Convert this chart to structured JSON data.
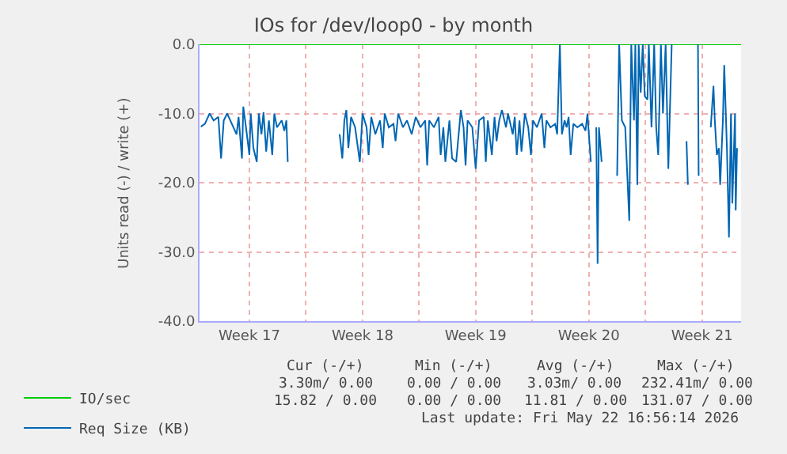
{
  "chart_data": {
    "type": "line",
    "title": "IOs for /dev/loop0 - by month",
    "ylabel": "Units read (-) / write (+)",
    "xlim": [
      "2026-04-20T10:00",
      "2026-05-23T22:00"
    ],
    "xticks": [
      {
        "value": "2026-04-23T12:00",
        "label": "Week 17"
      },
      {
        "value": "2026-04-27",
        "label": null
      },
      {
        "value": "2026-04-30T12:00",
        "label": "Week 18"
      },
      {
        "value": "2026-05-04",
        "label": null
      },
      {
        "value": "2026-05-07T12:00",
        "label": "Week 19"
      },
      {
        "value": "2026-05-11",
        "label": null
      },
      {
        "value": "2026-05-14T12:00",
        "label": "Week 20"
      },
      {
        "value": "2026-05-18",
        "label": null
      },
      {
        "value": "2026-05-21T12:00",
        "label": "Week 21"
      }
    ],
    "ylim": [
      -40,
      0
    ],
    "yticks": [
      {
        "value": 0,
        "label": "0.0"
      },
      {
        "value": -10,
        "label": "-10.0"
      },
      {
        "value": -20,
        "label": "-20.0"
      },
      {
        "value": -30,
        "label": "-30.0"
      },
      {
        "value": -40,
        "label": "-40.0"
      }
    ],
    "grid": true,
    "legend": "bottom left",
    "series": [
      {
        "name": "IO/sec",
        "color": "#00cc00",
        "x": [
          "2026-04-20T10:00",
          "2026-05-23T22:00"
        ],
        "values": [
          0,
          0
        ]
      },
      {
        "name": "Req Size (KB)",
        "color": "#0066b3",
        "x": [
          "2026-04-20T12:00",
          "2026-04-20T18:00",
          "2026-04-21T01:00",
          "2026-04-21T07:00",
          "2026-04-21T14:00",
          "2026-04-21T18:00",
          "2026-04-21T22:00",
          "2026-04-22T03:00",
          "2026-04-22T10:00",
          "2026-04-22T17:00",
          "2026-04-22T20:00",
          "2026-04-23T01:00",
          "2026-04-23T03:00",
          "2026-04-23T07:00",
          "2026-04-23T12:00",
          "2026-04-23T14:00",
          "2026-04-23T18:00",
          "2026-04-23T23:00",
          "2026-04-24T02:00",
          "2026-04-24T06:00",
          "2026-04-24T09:00",
          "2026-04-24T13:00",
          "2026-04-24T17:00",
          "2026-04-24T22:00",
          "2026-04-25T01:00",
          "2026-04-25T05:00",
          "2026-04-25T12:00",
          "2026-04-25T16:00",
          "2026-04-25T19:00",
          "2026-04-25T21:00",
          "2026-04-27T10:00",
          "2026-04-29T02:00",
          "2026-04-29T06:00",
          "2026-04-29T09:00",
          "2026-04-29T12:00",
          "2026-04-29T15:00",
          "2026-04-29T19:00",
          "2026-04-30T01:00",
          "2026-04-30T08:00",
          "2026-04-30T12:00",
          "2026-04-30T18:00",
          "2026-04-30T21:00",
          "2026-05-01T01:00",
          "2026-05-01T07:00",
          "2026-05-01T14:00",
          "2026-05-01T18:00",
          "2026-05-01T21:00",
          "2026-05-02T03:00",
          "2026-05-02T10:00",
          "2026-05-02T13:00",
          "2026-05-02T17:00",
          "2026-05-03T00:00",
          "2026-05-03T06:00",
          "2026-05-03T13:00",
          "2026-05-03T19:00",
          "2026-05-04T02:00",
          "2026-05-04T09:00",
          "2026-05-04T12:00",
          "2026-05-04T15:00",
          "2026-05-04T22:00",
          "2026-05-05T05:00",
          "2026-05-05T08:00",
          "2026-05-05T12:00",
          "2026-05-05T15:00",
          "2026-05-05T21:00",
          "2026-05-06T01:00",
          "2026-05-06T07:00",
          "2026-05-06T14:00",
          "2026-05-06T18:00",
          "2026-05-06T21:00",
          "2026-05-07T00:00",
          "2026-05-07T07:00",
          "2026-05-07T12:00",
          "2026-05-07T17:00",
          "2026-05-08T00:00",
          "2026-05-08T03:00",
          "2026-05-08T06:00",
          "2026-05-08T12:00",
          "2026-05-08T16:00",
          "2026-05-08T19:00",
          "2026-05-08T23:00",
          "2026-05-09T03:00",
          "2026-05-09T09:00",
          "2026-05-09T12:00",
          "2026-05-09T19:00",
          "2026-05-09T22:00",
          "2026-05-10T01:00",
          "2026-05-10T05:00",
          "2026-05-10T08:00",
          "2026-05-10T13:00",
          "2026-05-10T18:00",
          "2026-05-10T22:00",
          "2026-05-11T01:00",
          "2026-05-11T07:00",
          "2026-05-11T14:00",
          "2026-05-11T18:00",
          "2026-05-11T21:00",
          "2026-05-12T03:00",
          "2026-05-12T10:00",
          "2026-05-12T13:00",
          "2026-05-12T17:00",
          "2026-05-12T20:00",
          "2026-05-13T00:00",
          "2026-05-13T03:00",
          "2026-05-13T06:00",
          "2026-05-13T09:00",
          "2026-05-13T13:00",
          "2026-05-13T19:00",
          "2026-05-14T02:00",
          "2026-05-14T07:00",
          "2026-05-14T10:00",
          "2026-05-14T12:00",
          "2026-05-14T15:00",
          "2026-05-14T20:00",
          "2026-05-14T23:00",
          "2026-05-15T01:00",
          "2026-05-15T03:00",
          "2026-05-15T07:00",
          "2026-05-15T22:00",
          "2026-05-16T06:00",
          "2026-05-16T09:00",
          "2026-05-16T13:00",
          "2026-05-16T18:00",
          "2026-05-17T00:00",
          "2026-05-17T03:00",
          "2026-05-17T07:00",
          "2026-05-17T09:00",
          "2026-05-17T12:00",
          "2026-05-17T14:00",
          "2026-05-17T17:00",
          "2026-05-17T20:00",
          "2026-05-17T23:00",
          "2026-05-18T03:00",
          "2026-05-18T05:00",
          "2026-05-18T09:00",
          "2026-05-18T13:00",
          "2026-05-18T16:00",
          "2026-05-18T19:00",
          "2026-05-18T23:00",
          "2026-05-19T02:00",
          "2026-05-19T06:00",
          "2026-05-19T10:00",
          "2026-05-19T15:00",
          "2026-05-19T22:00",
          "2026-05-20T13:00",
          "2026-05-20T15:00",
          "2026-05-20T22:00",
          "2026-05-21T06:00",
          "2026-05-21T07:00",
          "2026-05-21T15:00",
          "2026-05-22T01:00",
          "2026-05-22T05:00",
          "2026-05-22T07:00",
          "2026-05-22T10:00",
          "2026-05-22T13:00",
          "2026-05-22T15:00",
          "2026-05-22T19:00",
          "2026-05-22T21:00",
          "2026-05-23T01:00",
          "2026-05-23T04:00",
          "2026-05-23T07:00",
          "2026-05-23T09:00",
          "2026-05-23T13:00",
          "2026-05-23T14:00",
          "2026-05-23T16:00"
        ],
        "values": [
          -11.9,
          -11.5,
          -10,
          -11,
          -10.5,
          -16.5,
          -11,
          -10,
          -11.5,
          -13,
          -10.5,
          -16.5,
          -9,
          -12,
          -16,
          -10,
          -15,
          -17,
          -10,
          -13,
          -9.8,
          -15.5,
          -11,
          -16,
          -10,
          -12,
          -11,
          -12.5,
          -11,
          -17,
          null,
          -13,
          -16.5,
          -11,
          -9.5,
          -15,
          -10.5,
          -12,
          -17,
          -10,
          -12,
          -16,
          -10.5,
          -13,
          -11,
          -15,
          -10,
          -12,
          -11.5,
          -14,
          -10,
          -12,
          -11,
          -13,
          -10.5,
          -12,
          -11,
          -17.5,
          -11,
          -12,
          -10.5,
          -16,
          -12,
          -17,
          -11,
          -16.5,
          -17,
          -9.5,
          -12,
          -17.5,
          -11,
          -12,
          -18,
          -11,
          -10.5,
          -17,
          -11,
          -16,
          -10.5,
          -14,
          -11,
          -9.5,
          -12,
          -10,
          -13,
          -10.5,
          -16,
          -11,
          -15.5,
          -10,
          -12,
          -16,
          -11,
          -12,
          -10,
          -15,
          -11,
          -12,
          -11.5,
          -13,
          0,
          -13,
          -11,
          -12,
          -10.5,
          -16,
          -11.5,
          -12,
          -11.5,
          -12.5,
          -10,
          -13,
          -17,
          null,
          -12,
          -31.7,
          -12,
          -17,
          null,
          -19,
          0,
          -11,
          -12,
          -25.5,
          0,
          -11,
          0,
          -20.3,
          0,
          -7,
          0,
          -7.5,
          -8,
          0,
          -12,
          0,
          -12,
          -16,
          0,
          -10,
          0,
          -18,
          0,
          null,
          -14,
          -20.3,
          null,
          0,
          -19,
          null,
          -12,
          -6,
          -11,
          -16,
          -15,
          -20.3,
          -11,
          -3,
          -15,
          -27.9,
          -10,
          -23,
          -10,
          -24,
          -15
        ]
      }
    ],
    "annotations": [
      "Cur (-/+)",
      "Min (-/+)",
      "Avg (-/+)",
      "Max (-/+)",
      "3.30m/ 0.00",
      "0.00 / 0.00",
      "3.03m/ 0.00",
      "232.41m/ 0.00",
      "15.82 / 0.00",
      "0.00 / 0.00",
      "11.81 / 0.00",
      "131.07 / 0.00",
      "Last update: Fri May 22 16:56:14 2026"
    ]
  }
}
